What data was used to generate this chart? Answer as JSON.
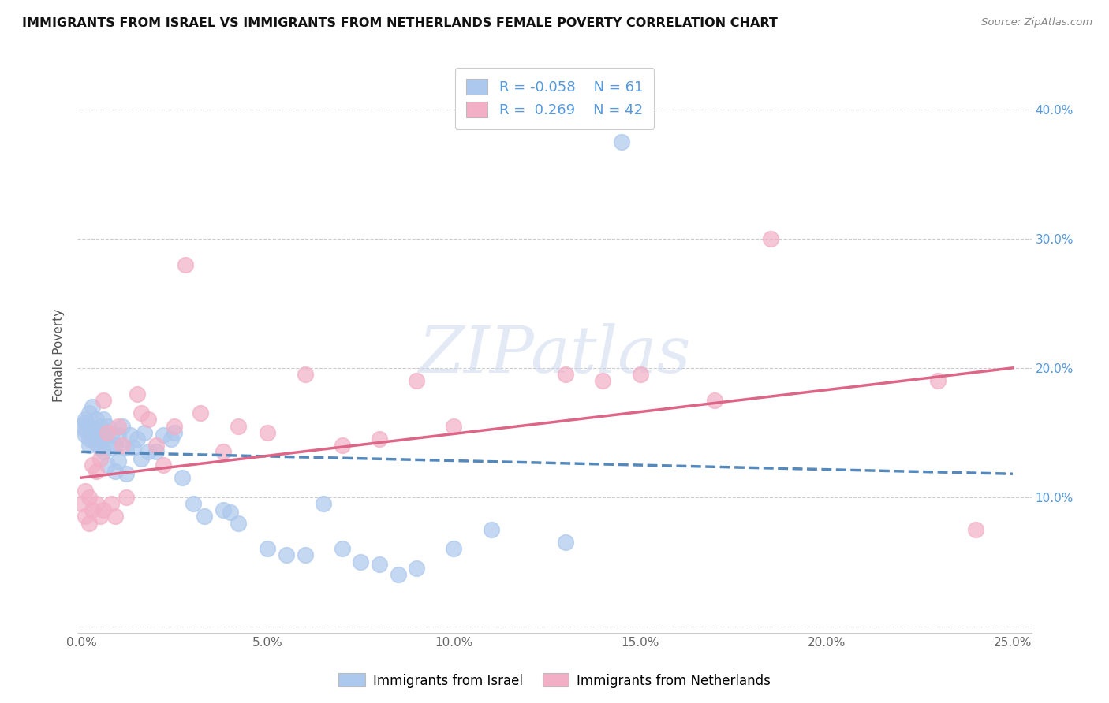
{
  "title": "IMMIGRANTS FROM ISRAEL VS IMMIGRANTS FROM NETHERLANDS FEMALE POVERTY CORRELATION CHART",
  "source": "Source: ZipAtlas.com",
  "ylabel": "Female Poverty",
  "xlim": [
    -0.001,
    0.255
  ],
  "ylim": [
    -0.005,
    0.425
  ],
  "xtick_vals": [
    0.0,
    0.05,
    0.1,
    0.15,
    0.2,
    0.25
  ],
  "xtick_labels": [
    "0.0%",
    "5.0%",
    "10.0%",
    "15.0%",
    "20.0%",
    "25.0%"
  ],
  "ytick_vals": [
    0.0,
    0.1,
    0.2,
    0.3,
    0.4
  ],
  "ytick_labels_right": [
    "",
    "10.0%",
    "20.0%",
    "30.0%",
    "40.0%"
  ],
  "legend_R1": "-0.058",
  "legend_N1": "61",
  "legend_R2": "0.269",
  "legend_N2": "42",
  "color_israel": "#adc8ed",
  "color_netherlands": "#f2afc5",
  "line_color_israel": "#5588bb",
  "line_color_netherlands": "#dd6688",
  "watermark_text": "ZIPatlas",
  "israel_x": [
    0.0,
    0.001,
    0.001,
    0.001,
    0.001,
    0.002,
    0.002,
    0.002,
    0.002,
    0.003,
    0.003,
    0.003,
    0.004,
    0.004,
    0.004,
    0.005,
    0.005,
    0.005,
    0.006,
    0.006,
    0.006,
    0.007,
    0.007,
    0.008,
    0.008,
    0.009,
    0.009,
    0.01,
    0.01,
    0.011,
    0.012,
    0.012,
    0.013,
    0.014,
    0.015,
    0.016,
    0.017,
    0.018,
    0.02,
    0.022,
    0.024,
    0.025,
    0.027,
    0.03,
    0.033,
    0.038,
    0.04,
    0.042,
    0.05,
    0.055,
    0.06,
    0.065,
    0.07,
    0.075,
    0.08,
    0.085,
    0.09,
    0.1,
    0.11,
    0.13,
    0.145
  ],
  "israel_y": [
    0.155,
    0.16,
    0.158,
    0.152,
    0.148,
    0.165,
    0.155,
    0.145,
    0.14,
    0.17,
    0.152,
    0.148,
    0.16,
    0.148,
    0.142,
    0.155,
    0.145,
    0.138,
    0.16,
    0.148,
    0.135,
    0.155,
    0.125,
    0.148,
    0.138,
    0.14,
    0.12,
    0.148,
    0.128,
    0.155,
    0.138,
    0.118,
    0.148,
    0.138,
    0.145,
    0.13,
    0.15,
    0.135,
    0.135,
    0.148,
    0.145,
    0.15,
    0.115,
    0.095,
    0.085,
    0.09,
    0.088,
    0.08,
    0.06,
    0.055,
    0.055,
    0.095,
    0.06,
    0.05,
    0.048,
    0.04,
    0.045,
    0.06,
    0.075,
    0.065,
    0.375
  ],
  "netherlands_x": [
    0.0,
    0.001,
    0.001,
    0.002,
    0.002,
    0.003,
    0.003,
    0.004,
    0.004,
    0.005,
    0.005,
    0.006,
    0.006,
    0.007,
    0.008,
    0.009,
    0.01,
    0.011,
    0.012,
    0.015,
    0.016,
    0.018,
    0.02,
    0.022,
    0.025,
    0.028,
    0.032,
    0.038,
    0.042,
    0.05,
    0.06,
    0.07,
    0.08,
    0.09,
    0.1,
    0.13,
    0.14,
    0.15,
    0.17,
    0.185,
    0.23,
    0.24
  ],
  "netherlands_y": [
    0.095,
    0.105,
    0.085,
    0.1,
    0.08,
    0.125,
    0.09,
    0.12,
    0.095,
    0.13,
    0.085,
    0.175,
    0.09,
    0.15,
    0.095,
    0.085,
    0.155,
    0.14,
    0.1,
    0.18,
    0.165,
    0.16,
    0.14,
    0.125,
    0.155,
    0.28,
    0.165,
    0.135,
    0.155,
    0.15,
    0.195,
    0.14,
    0.145,
    0.19,
    0.155,
    0.195,
    0.19,
    0.195,
    0.175,
    0.3,
    0.19,
    0.075
  ],
  "line_isr_x0": 0.0,
  "line_isr_x1": 0.25,
  "line_isr_y0": 0.135,
  "line_isr_y1": 0.118,
  "line_neth_x0": 0.0,
  "line_neth_x1": 0.25,
  "line_neth_y0": 0.115,
  "line_neth_y1": 0.2
}
